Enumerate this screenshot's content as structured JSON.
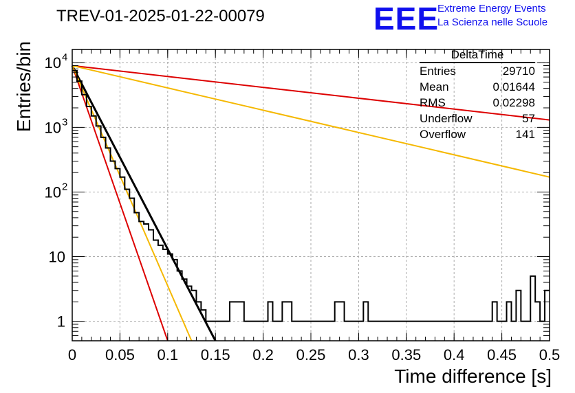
{
  "title": "TREV-01-2025-01-22-00079",
  "logo": {
    "mark": "EEE",
    "line1": "Extreme Energy Events",
    "line2": "La Scienza nelle Scuole",
    "color": "#1010ee"
  },
  "stats_box": {
    "name": "DeltaTime",
    "rows": [
      {
        "label": "Entries",
        "value": "29710"
      },
      {
        "label": "Mean",
        "value": "0.01644"
      },
      {
        "label": "RMS",
        "value": "0.02298"
      },
      {
        "label": "Underflow",
        "value": "57"
      },
      {
        "label": "Overflow",
        "value": "141"
      }
    ]
  },
  "chart_data": {
    "type": "histogram",
    "xlabel": "Time difference [s]",
    "ylabel": "Entries/bin",
    "xlim": [
      0,
      0.5
    ],
    "ylim": [
      0.5,
      16000
    ],
    "yscale": "log",
    "grid": true,
    "x_ticks": [
      "0",
      "0.05",
      "0.1",
      "0.15",
      "0.2",
      "0.25",
      "0.3",
      "0.35",
      "0.4",
      "0.45",
      "0.5"
    ],
    "y_ticks": [
      {
        "value": 1,
        "label": "1"
      },
      {
        "value": 10,
        "label": "10"
      },
      {
        "value": 100,
        "label": "10",
        "exp": "2"
      },
      {
        "value": 1000,
        "label": "10",
        "exp": "3"
      },
      {
        "value": 10000,
        "label": "10",
        "exp": "4"
      }
    ],
    "bin_width": 0.005,
    "x_start": 0,
    "bins": [
      [
        0.0,
        7500
      ],
      [
        0.005,
        5200
      ],
      [
        0.01,
        3200
      ],
      [
        0.015,
        2100
      ],
      [
        0.02,
        1500
      ],
      [
        0.025,
        1050
      ],
      [
        0.03,
        700
      ],
      [
        0.035,
        480
      ],
      [
        0.04,
        300
      ],
      [
        0.045,
        230
      ],
      [
        0.05,
        170
      ],
      [
        0.055,
        110
      ],
      [
        0.06,
        80
      ],
      [
        0.065,
        48
      ],
      [
        0.07,
        35
      ],
      [
        0.075,
        32
      ],
      [
        0.08,
        26
      ],
      [
        0.085,
        18
      ],
      [
        0.09,
        15
      ],
      [
        0.095,
        13
      ],
      [
        0.1,
        11
      ],
      [
        0.105,
        9
      ],
      [
        0.11,
        6
      ],
      [
        0.115,
        4.5
      ],
      [
        0.12,
        3.5
      ],
      [
        0.125,
        3
      ],
      [
        0.13,
        2
      ],
      [
        0.135,
        1.5
      ],
      [
        0.14,
        1
      ],
      [
        0.145,
        1
      ],
      [
        0.15,
        1
      ],
      [
        0.155,
        1
      ],
      [
        0.16,
        1
      ],
      [
        0.165,
        2
      ],
      [
        0.17,
        2
      ],
      [
        0.175,
        2
      ],
      [
        0.18,
        1
      ],
      [
        0.185,
        1
      ],
      [
        0.19,
        1
      ],
      [
        0.195,
        1
      ],
      [
        0.2,
        1
      ],
      [
        0.205,
        2
      ],
      [
        0.21,
        1
      ],
      [
        0.215,
        1
      ],
      [
        0.22,
        2
      ],
      [
        0.225,
        2
      ],
      [
        0.23,
        1
      ],
      [
        0.235,
        1
      ],
      [
        0.24,
        1
      ],
      [
        0.245,
        1
      ],
      [
        0.25,
        1
      ],
      [
        0.255,
        1
      ],
      [
        0.26,
        1
      ],
      [
        0.265,
        1
      ],
      [
        0.27,
        1
      ],
      [
        0.275,
        2
      ],
      [
        0.28,
        2
      ],
      [
        0.285,
        1
      ],
      [
        0.29,
        1
      ],
      [
        0.295,
        1
      ],
      [
        0.3,
        1
      ],
      [
        0.305,
        2
      ],
      [
        0.31,
        1
      ],
      [
        0.315,
        1
      ],
      [
        0.32,
        1
      ],
      [
        0.325,
        1
      ],
      [
        0.33,
        1
      ],
      [
        0.335,
        1
      ],
      [
        0.34,
        1
      ],
      [
        0.345,
        1
      ],
      [
        0.35,
        1
      ],
      [
        0.355,
        1
      ],
      [
        0.36,
        1
      ],
      [
        0.365,
        1
      ],
      [
        0.37,
        1
      ],
      [
        0.375,
        1
      ],
      [
        0.38,
        1
      ],
      [
        0.385,
        1
      ],
      [
        0.39,
        1
      ],
      [
        0.395,
        1
      ],
      [
        0.4,
        1
      ],
      [
        0.405,
        1
      ],
      [
        0.41,
        1
      ],
      [
        0.415,
        1
      ],
      [
        0.42,
        1
      ],
      [
        0.425,
        1
      ],
      [
        0.43,
        1
      ],
      [
        0.435,
        1
      ],
      [
        0.44,
        2
      ],
      [
        0.445,
        1
      ],
      [
        0.45,
        1
      ],
      [
        0.455,
        2
      ],
      [
        0.46,
        1
      ],
      [
        0.465,
        3
      ],
      [
        0.47,
        1
      ],
      [
        0.475,
        1
      ],
      [
        0.48,
        5
      ],
      [
        0.485,
        2
      ],
      [
        0.49,
        1
      ],
      [
        0.495,
        3
      ]
    ],
    "fits": [
      {
        "color": "#000000",
        "x": [
          0.0,
          0.15
        ],
        "y": [
          9000,
          0.5
        ]
      },
      {
        "color": "#dd0000",
        "x": [
          0.0,
          0.1
        ],
        "y": [
          9000,
          0.5
        ]
      },
      {
        "color": "#f5b800",
        "x": [
          0.0,
          0.125
        ],
        "y": [
          9000,
          0.5
        ]
      },
      {
        "color": "#dd0000",
        "x": [
          0.0,
          0.5
        ],
        "y": [
          9000,
          1300
        ]
      },
      {
        "color": "#f5b800",
        "x": [
          0.0,
          0.5
        ],
        "y": [
          9000,
          170
        ]
      }
    ]
  }
}
